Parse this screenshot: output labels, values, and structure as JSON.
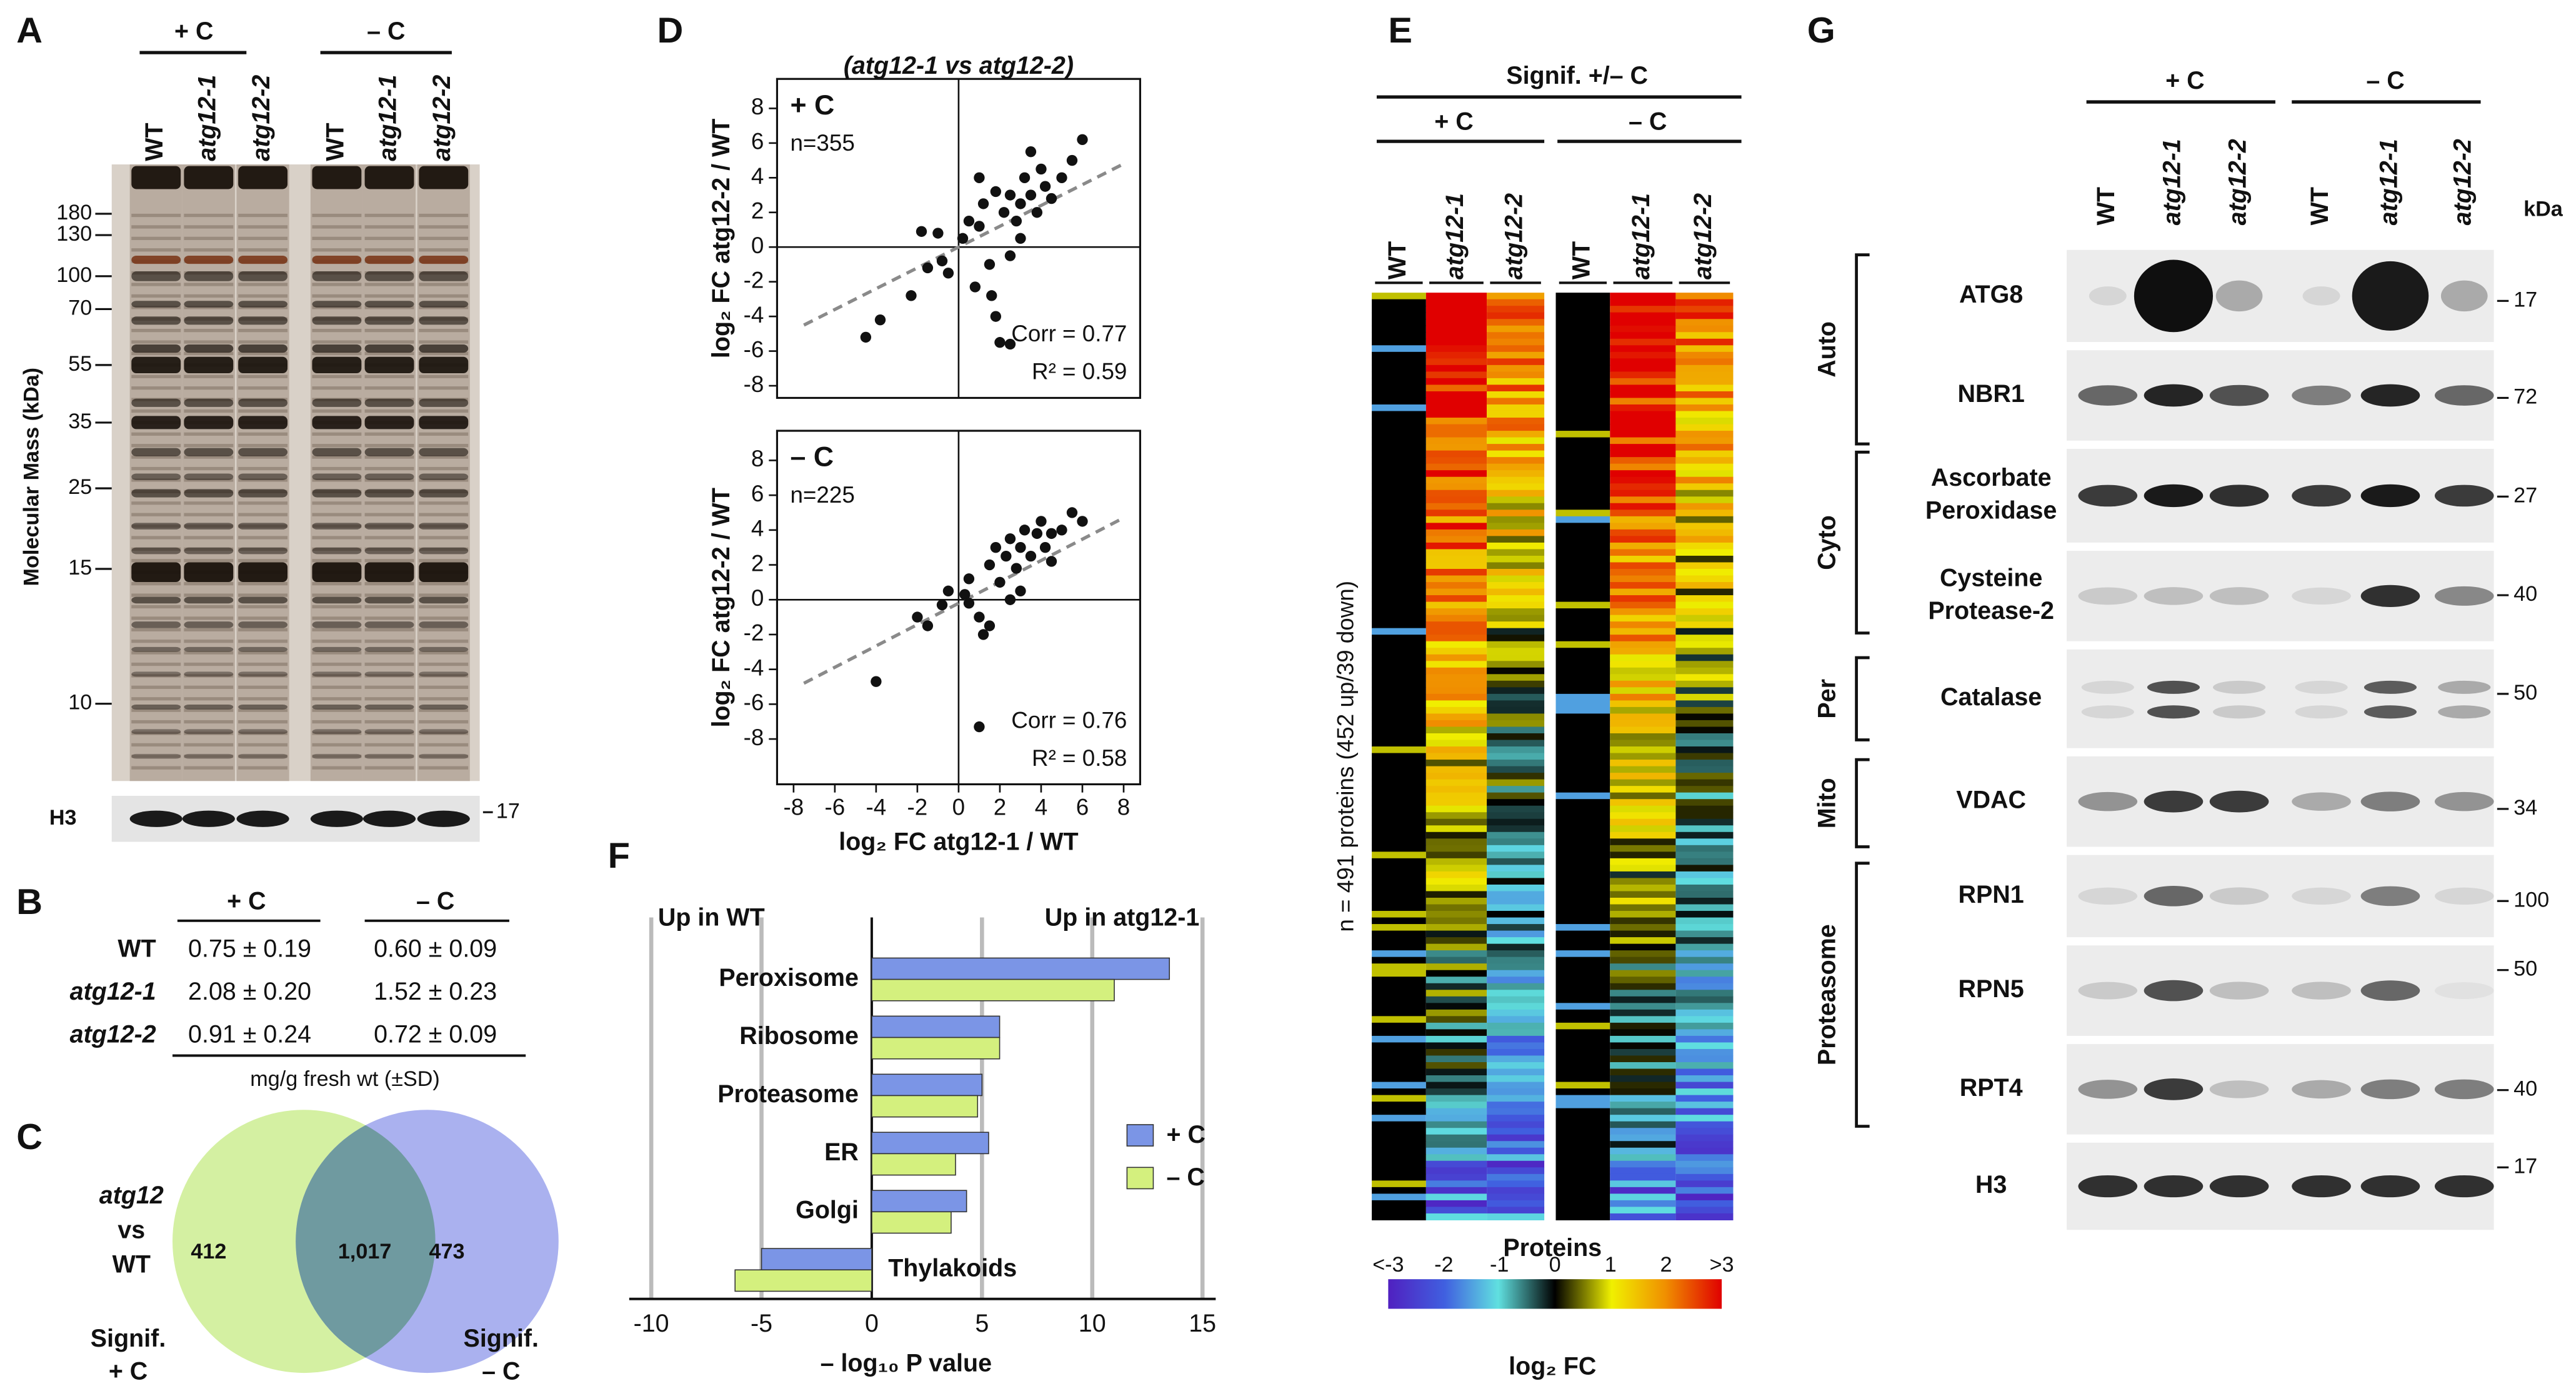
{
  "panels": {
    "A": {
      "panel_label": "A",
      "groups": [
        "+ C",
        "– C"
      ],
      "lanes": [
        "WT",
        "atg12-1",
        "atg12-2",
        "WT",
        "atg12-1",
        "atg12-2"
      ],
      "y_label": "Molecular Mass (kDa)",
      "markers": [
        "180",
        "130",
        "100",
        "70",
        "55",
        "35",
        "25",
        "15",
        "10"
      ],
      "loading_label": "H3",
      "loading_marker": "17"
    },
    "B": {
      "panel_label": "B",
      "columns": [
        "+ C",
        "– C"
      ],
      "rows": [
        {
          "name": "WT",
          "values": [
            "0.75 ± 0.19",
            "0.60 ± 0.09"
          ]
        },
        {
          "name": "atg12-1",
          "values": [
            "2.08 ± 0.20",
            "1.52 ± 0.23"
          ]
        },
        {
          "name": "atg12-2",
          "values": [
            "0.91 ± 0.24",
            "0.72 ± 0.09"
          ]
        }
      ],
      "footnote": "mg/g fresh wt (±SD)"
    },
    "C": {
      "panel_label": "C",
      "title_lines": [
        "atg12",
        "vs",
        "WT"
      ],
      "left_only": "412",
      "both": "1,017",
      "right_only": "473",
      "left_label": [
        "Signif.",
        "+ C"
      ],
      "right_label": [
        "Signif.",
        "– C"
      ]
    },
    "E": {
      "panel_label": "E",
      "title": "Signif. +/– C",
      "groups": [
        "+ C",
        "– C"
      ],
      "lanes": [
        "WT",
        "atg12-1",
        "atg12-2",
        "WT",
        "atg12-1",
        "atg12-2"
      ],
      "y_label": "n = 491 proteins (452 up/39 down)",
      "x_label": "Proteins",
      "colorbar_ticks": [
        "<-3",
        "-2",
        "-1",
        "0",
        "1",
        "2",
        ">3"
      ],
      "colorbar_label": "log₂ FC"
    },
    "G": {
      "panel_label": "G",
      "groups": [
        "+ C",
        "– C"
      ],
      "lanes": [
        "WT",
        "atg12-1",
        "atg12-2",
        "WT",
        "atg12-1",
        "atg12-2"
      ],
      "unit": "kDa",
      "rows": [
        {
          "name": [
            "ATG8"
          ],
          "marker": "17"
        },
        {
          "name": [
            "NBR1"
          ],
          "marker": "72"
        },
        {
          "name": [
            "Ascorbate",
            "Peroxidase"
          ],
          "marker": "27"
        },
        {
          "name": [
            "Cysteine",
            "Protease-2"
          ],
          "marker": "40"
        },
        {
          "name": [
            "Catalase"
          ],
          "marker": "50"
        },
        {
          "name": [
            "VDAC"
          ],
          "marker": "34"
        },
        {
          "name": [
            "RPN1"
          ],
          "marker": "100"
        },
        {
          "name": [
            "RPN5"
          ],
          "marker": "50"
        },
        {
          "name": [
            "RPT4"
          ],
          "marker": "40"
        },
        {
          "name": [
            "H3"
          ],
          "marker": "17"
        }
      ],
      "sections": [
        "Auto",
        "Cyto",
        "Per",
        "Mito",
        "Proteasome"
      ]
    }
  },
  "chart_data": [
    {
      "type": "scatter",
      "panel_label": "D",
      "title": "(atg12-1 vs atg12-2)",
      "y_label": "log₂ FC atg12-2 / WT",
      "annotations": [
        "+ C",
        "n=355",
        "Corr = 0.77",
        "R² = 0.59"
      ],
      "xlim": [
        -8.8,
        8.8
      ],
      "ylim": [
        -8.7,
        9.7
      ],
      "yticks": [
        -8,
        -6,
        -4,
        -2,
        0,
        2,
        4,
        6,
        8
      ],
      "color": "#111111",
      "x": [
        -4.5,
        -3.8,
        -2.3,
        -1.5,
        -0.8,
        -0.5,
        -1,
        -1.8,
        0.2,
        0.5,
        1,
        1.2,
        1.5,
        1.6,
        1.8,
        2,
        2.5,
        1.8,
        2.2,
        2.5,
        2.8,
        3,
        3.2,
        3.5,
        3.8,
        4,
        4.2,
        4.5,
        5,
        5.5,
        6,
        2.5,
        3,
        0.8,
        1,
        3.5
      ],
      "y": [
        -5.2,
        -4.2,
        -2.8,
        -1.2,
        -0.8,
        -1.5,
        0.8,
        0.9,
        0.5,
        1.5,
        1.2,
        2.5,
        -1,
        -2.8,
        -4,
        -5.5,
        -5.6,
        3.2,
        2,
        3,
        1.5,
        2.5,
        4,
        3,
        2,
        4.5,
        3.5,
        2.8,
        4,
        5,
        6.2,
        -0.5,
        0.5,
        -2.3,
        4,
        5.5
      ],
      "trendline": {
        "x": [
          -7.5,
          8
        ],
        "y": [
          -4.5,
          4.8
        ]
      }
    },
    {
      "type": "scatter",
      "x_label": "log₂ FC atg12-1 / WT",
      "y_label": "log₂ FC atg12-2 / WT",
      "annotations": [
        "– C",
        "n=225",
        "Corr = 0.76",
        "R² = 0.58"
      ],
      "xlim": [
        -8.8,
        8.8
      ],
      "ylim": [
        -10.6,
        9.7
      ],
      "xticks": [
        -8,
        -6,
        -4,
        -2,
        0,
        2,
        4,
        6,
        8
      ],
      "yticks": [
        -8,
        -6,
        -4,
        -2,
        0,
        2,
        4,
        6,
        8
      ],
      "color": "#111111",
      "x": [
        -4,
        -1.5,
        -2,
        -0.8,
        -0.5,
        0.3,
        0.5,
        1,
        1.2,
        1.5,
        1,
        1.5,
        1.8,
        2,
        2.3,
        2.5,
        2.8,
        3,
        3.2,
        3.5,
        3.8,
        4,
        4.2,
        4.5,
        5,
        5.5,
        6,
        3,
        2.5,
        0.5,
        4.5
      ],
      "y": [
        -4.7,
        -1.5,
        -1,
        -0.3,
        0.5,
        0.3,
        1.2,
        -1,
        -2,
        -1.5,
        -7.3,
        2,
        3,
        1,
        2.5,
        3.5,
        1.8,
        3,
        4,
        2.5,
        3.8,
        4.5,
        3,
        3.8,
        4,
        5,
        4.5,
        0.5,
        0,
        -0.2,
        2.2
      ],
      "trendline": {
        "x": [
          -7.5,
          8
        ],
        "y": [
          -4.8,
          4.7
        ]
      }
    },
    {
      "type": "bar",
      "orientation": "horizontal",
      "panel_label": "F",
      "categories": [
        "Peroxisome",
        "Ribosome",
        "Proteasome",
        "ER",
        "Golgi",
        "Thylakoids"
      ],
      "series": [
        {
          "name": "+ C",
          "color": "#7b95e6",
          "values": [
            13.5,
            5.8,
            5.0,
            5.3,
            4.3,
            -5.0
          ]
        },
        {
          "name": "– C",
          "color": "#d4f07e",
          "values": [
            11.0,
            5.8,
            4.8,
            3.8,
            3.6,
            -6.2
          ]
        }
      ],
      "xlim": [
        -11,
        15.6
      ],
      "xticks": [
        -10,
        -5,
        0,
        5,
        10,
        15
      ],
      "x_label": "– log₁₀ P value",
      "annotations": [
        "Up in WT",
        "Up in atg12-1"
      ],
      "grid": true,
      "legend": "right"
    }
  ]
}
